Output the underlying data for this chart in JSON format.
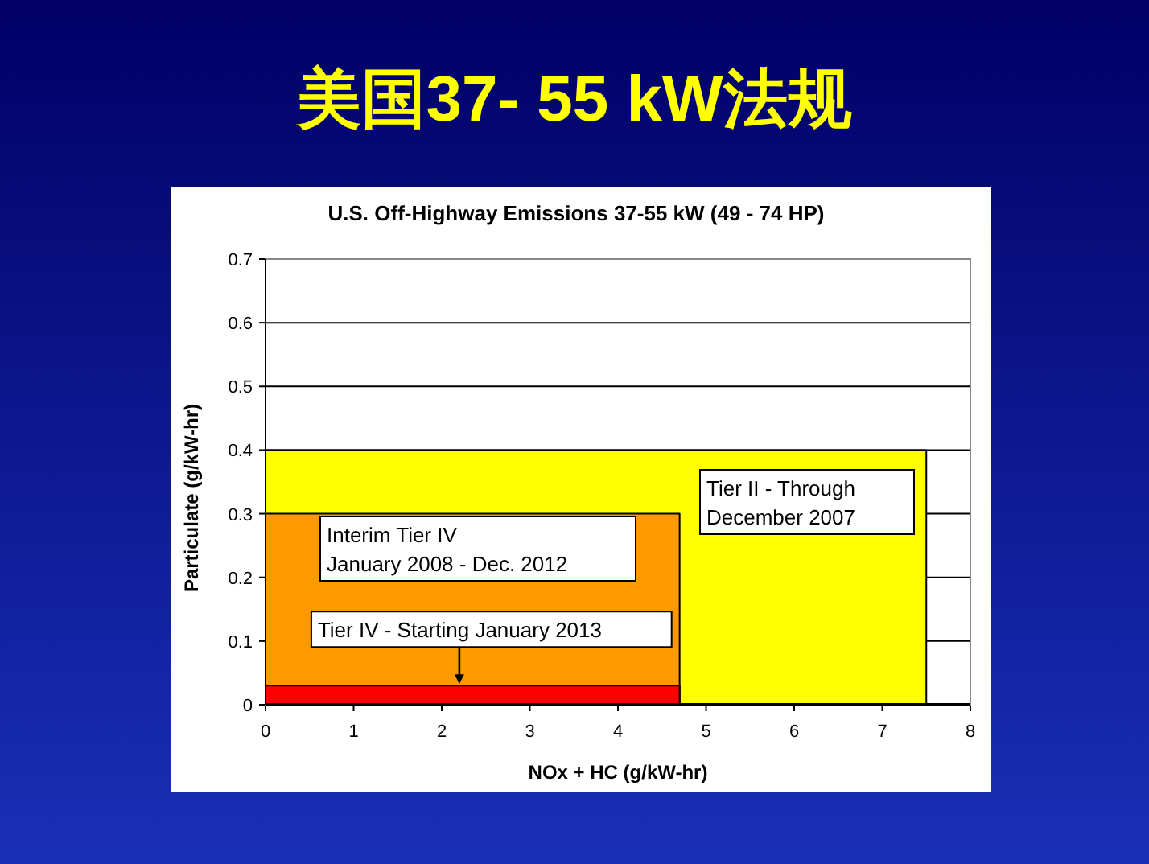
{
  "chart_data": {
    "type": "area",
    "title": "美国37- 55 kW法规",
    "subtitle": "U.S. Off-Highway Emissions 37-55 kW (49 - 74 HP)",
    "xlabel": "NOx + HC (g/kW-hr)",
    "ylabel": "Particulate (g/kW-hr)",
    "series": [
      {
        "color": "#ffff00",
        "x": [
          0,
          7.5
        ],
        "values": [
          0.4,
          0.4
        ]
      },
      {
        "color": "#ff9900",
        "x": [
          0,
          4.7
        ],
        "values": [
          0.3,
          0.3
        ]
      },
      {
        "color": "#ff0000",
        "x": [
          0,
          4.7
        ],
        "values": [
          0.03,
          0.03
        ]
      }
    ],
    "annotations": [
      "Tier II - Through\nDecember 2007",
      "Interim Tier IV\nJanuary 2008 - Dec. 2012",
      {
        "text": "Tier IV - Starting January 2013",
        "x": 2.2,
        "y": 0.03
      }
    ],
    "xlim": [
      0,
      8
    ],
    "ylim": [
      0,
      0.7
    ],
    "xticks": [
      0,
      1,
      2,
      3,
      4,
      5,
      6,
      7,
      8
    ],
    "yticks": [
      0,
      0.1,
      0.2,
      0.3,
      0.4,
      0.5,
      0.6,
      0.7
    ],
    "grid": "y"
  }
}
